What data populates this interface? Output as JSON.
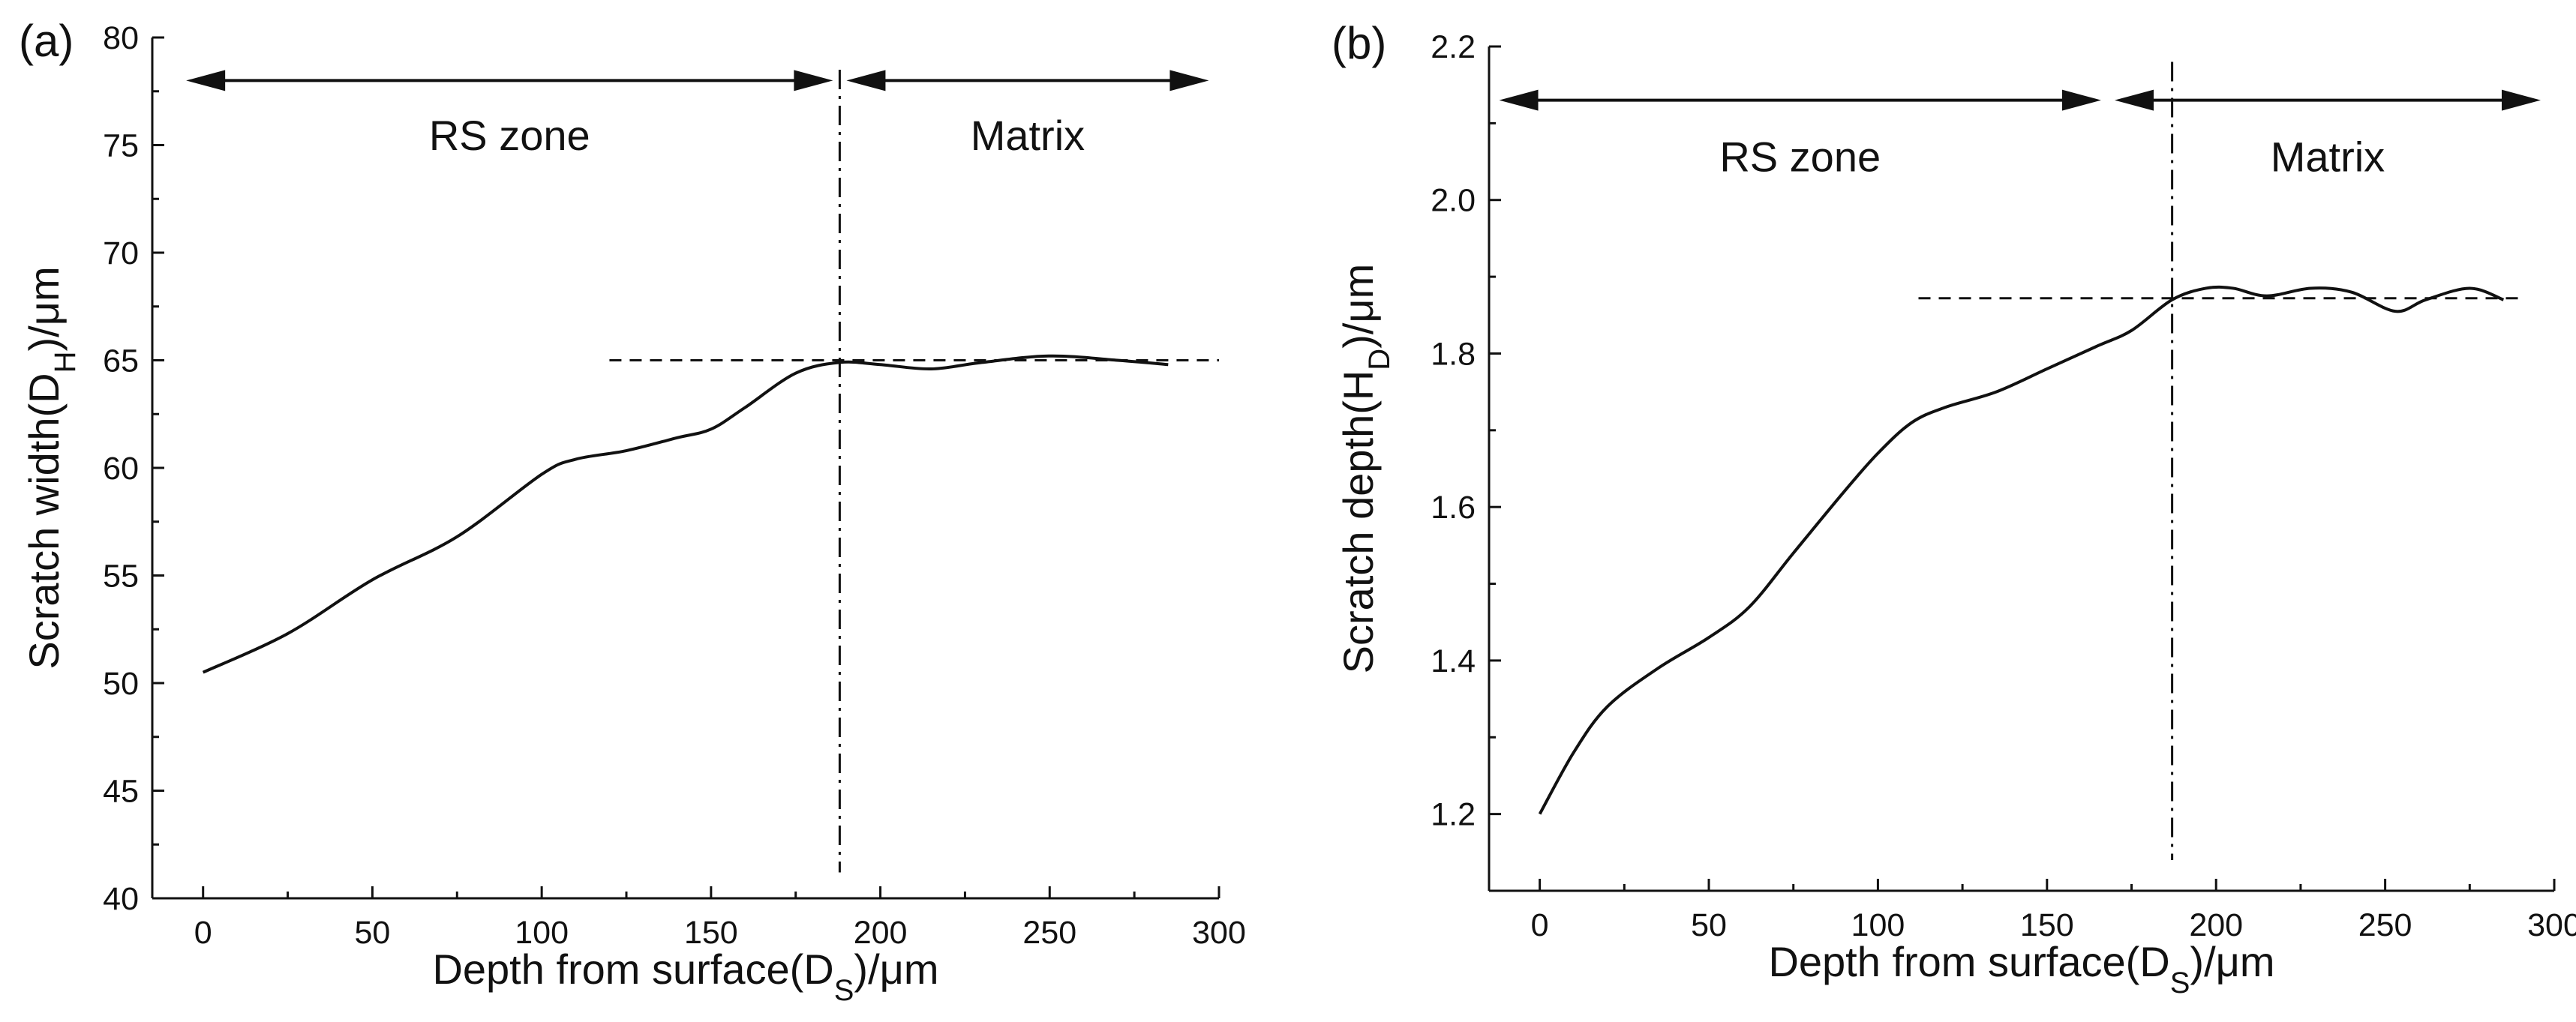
{
  "chart_data": [
    {
      "type": "line",
      "panel_label": "(a)",
      "xlabel": "Depth from surface",
      "xlabel_symbol": "D",
      "xlabel_subscript": "S",
      "xlabel_unit": "/μm",
      "ylabel": "Scratch width",
      "ylabel_symbol": "D",
      "ylabel_subscript": "H",
      "ylabel_unit": "/μm",
      "xlim": [
        -15,
        300
      ],
      "ylim": [
        40,
        80
      ],
      "xticks": [
        0,
        50,
        100,
        150,
        200,
        250,
        300
      ],
      "yticks": [
        40,
        45,
        50,
        55,
        60,
        65,
        70,
        75,
        80
      ],
      "series": [
        {
          "name": "Scratch width",
          "x": [
            0,
            25,
            50,
            75,
            100,
            110,
            125,
            140,
            150,
            160,
            175,
            188,
            200,
            215,
            230,
            250,
            270,
            285
          ],
          "y": [
            50.5,
            52.3,
            54.8,
            56.8,
            59.7,
            60.4,
            60.8,
            61.4,
            61.8,
            62.8,
            64.4,
            64.9,
            64.8,
            64.6,
            64.9,
            65.2,
            65.0,
            64.8
          ]
        }
      ],
      "reference_hline": {
        "y": 65.0,
        "x_start": 120,
        "x_end": 300
      },
      "reference_vline": {
        "x": 188,
        "y_start": 41.2,
        "y_end": 78.5
      },
      "zones": [
        {
          "label": "RS zone",
          "x_start": -5,
          "x_end": 186,
          "arrow_y": 78.0,
          "label_y": 75.4
        },
        {
          "label": "Matrix",
          "x_start": 190,
          "x_end": 297,
          "arrow_y": 78.0,
          "label_y": 75.4
        }
      ]
    },
    {
      "type": "line",
      "panel_label": "(b)",
      "xlabel": "Depth from surface",
      "xlabel_symbol": "D",
      "xlabel_subscript": "S",
      "xlabel_unit": "/μm",
      "ylabel": "Scratch depth",
      "ylabel_symbol": "H",
      "ylabel_subscript": "D",
      "ylabel_unit": "/μm",
      "xlim": [
        -15,
        300
      ],
      "ylim": [
        1.1,
        2.2
      ],
      "xticks": [
        0,
        50,
        100,
        150,
        200,
        250,
        300
      ],
      "yticks": [
        1.2,
        1.4,
        1.6,
        1.8,
        2.0,
        2.2
      ],
      "yticks_decimals": 1,
      "series": [
        {
          "name": "Scratch depth",
          "x": [
            0,
            10,
            20,
            35,
            50,
            62,
            75,
            90,
            100,
            110,
            120,
            135,
            150,
            165,
            175,
            187,
            197,
            205,
            215,
            228,
            240,
            253,
            262,
            275,
            285
          ],
          "y": [
            1.2,
            1.28,
            1.34,
            1.39,
            1.43,
            1.47,
            1.54,
            1.62,
            1.67,
            1.71,
            1.73,
            1.75,
            1.78,
            1.81,
            1.83,
            1.87,
            1.885,
            1.885,
            1.875,
            1.885,
            1.88,
            1.855,
            1.87,
            1.885,
            1.87
          ]
        }
      ],
      "reference_hline": {
        "y": 1.872,
        "x_start": 112,
        "x_end": 290
      },
      "reference_vline": {
        "x": 187,
        "y_start": 1.14,
        "y_end": 2.18
      },
      "zones": [
        {
          "label": "RS zone",
          "x_start": -12,
          "x_end": 166,
          "arrow_y": 2.13,
          "label_y": 2.055
        },
        {
          "label": "Matrix",
          "x_start": 170,
          "x_end": 296,
          "arrow_y": 2.13,
          "label_y": 2.055
        }
      ]
    }
  ]
}
